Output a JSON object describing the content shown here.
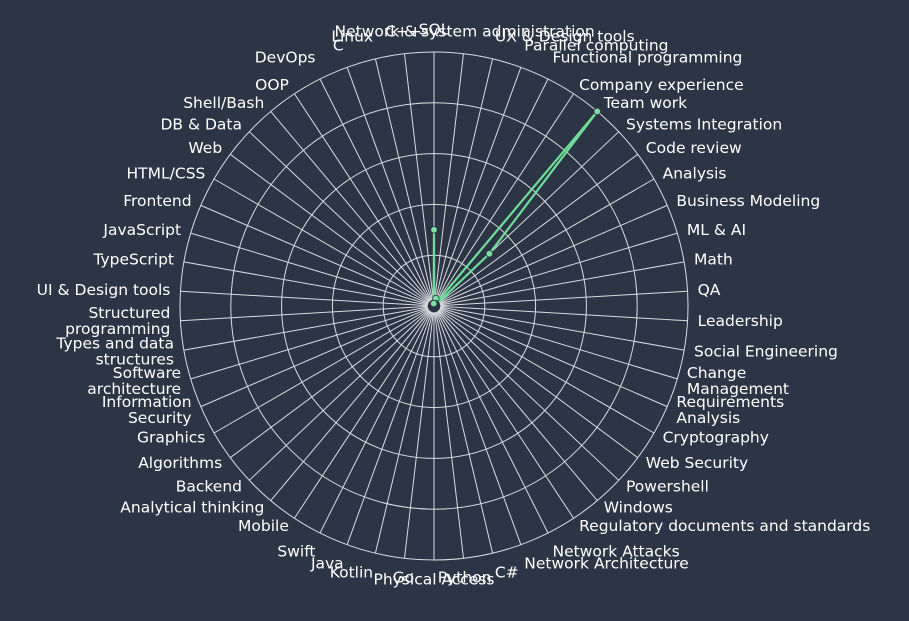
{
  "chart_data": {
    "type": "radar",
    "categories": [
      "SQL",
      "Network & system administration",
      "UX & Design tools",
      "Parallel computing",
      "Functional programming",
      "Company experience",
      "Team work",
      "Systems Integration",
      "Code review",
      "Analysis",
      "Business Modeling",
      "ML & AI",
      "Math",
      "QA",
      "Leadership",
      "Social Engineering",
      "Change\nManagement",
      "Requirements\nAnalysis",
      "Cryptography",
      "Web Security",
      "Powershell",
      "Windows",
      "Regulatory documents and standards",
      "Network Attacks",
      "Network Architecture",
      "C#",
      "Python",
      "Physical Access",
      "Go",
      "Kotlin",
      "Java",
      "Swift",
      "Mobile",
      "Analytical thinking",
      "Backend",
      "Algorithms",
      "Graphics",
      "Information\nSecurity",
      "Software\narchitecture",
      "Types and data\nstructures",
      "Structured\nprogramming",
      "UI & Design tools",
      "TypeScript",
      "JavaScript",
      "Frontend",
      "HTML/CSS",
      "Web",
      "DB & Data",
      "Shell/Bash",
      "OOP",
      "DevOps",
      "C",
      "Linux",
      "C++"
    ],
    "values": [
      3,
      0.1,
      0.3,
      0.1,
      0.1,
      0.1,
      10,
      3,
      0.1,
      0.1,
      0.1,
      0.1,
      0.1,
      0.1,
      0.1,
      0.1,
      0.1,
      0.1,
      0.1,
      0.1,
      0.1,
      0.1,
      0.1,
      0.1,
      0.1,
      0.1,
      0.1,
      0.1,
      0.1,
      0.1,
      0.1,
      0.1,
      0.1,
      0.1,
      0.1,
      0.1,
      0.1,
      0.1,
      0.1,
      0.1,
      0.1,
      0.1,
      0.1,
      0.1,
      0.1,
      0.1,
      0.1,
      0.1,
      0.1,
      0.1,
      0.1,
      0.1,
      0.1,
      0.1
    ],
    "rmax": 10,
    "ring_count": 5,
    "grid": true,
    "colors": {
      "background": "#2c3545",
      "grid": "#d9dce1",
      "series": "#6fdc9a",
      "label": "#ffffff"
    }
  }
}
